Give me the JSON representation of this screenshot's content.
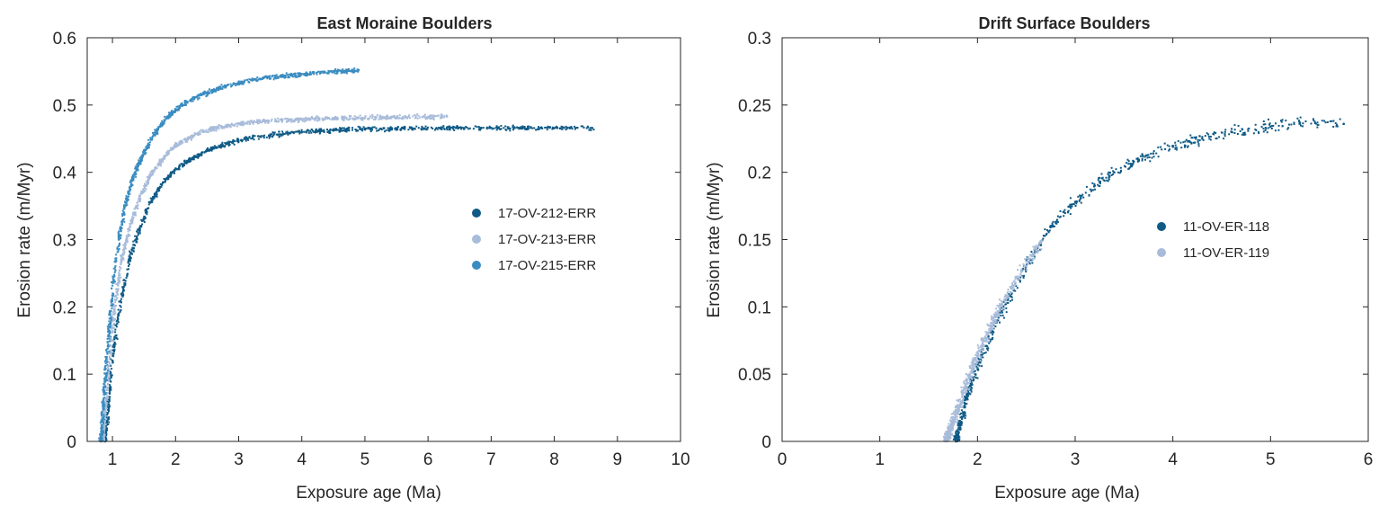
{
  "chart_data": [
    {
      "type": "scatter",
      "title": "East Moraine Boulders",
      "xlabel": "Exposure age (Ma)",
      "ylabel": "Erosion rate (m/Myr)",
      "xlim": [
        0.6,
        10
      ],
      "ylim": [
        0,
        0.6
      ],
      "xticks": [
        1,
        2,
        3,
        4,
        5,
        6,
        7,
        8,
        9,
        10
      ],
      "xtick_labels": [
        "1",
        "2",
        "3",
        "4",
        "5",
        "6",
        "7",
        "8",
        "9",
        "10"
      ],
      "yticks": [
        0,
        0.1,
        0.2,
        0.3,
        0.4,
        0.5,
        0.6
      ],
      "ytick_labels": [
        "0",
        "0.1",
        "0.2",
        "0.3",
        "0.4",
        "0.5",
        "0.6"
      ],
      "grid": false,
      "legend_position": "right",
      "series": [
        {
          "name": "17-OV-212-ERR",
          "color": "#0f5a86",
          "x": [
            0.88,
            0.95,
            1.0,
            1.08,
            1.18,
            1.3,
            1.45,
            1.6,
            1.8,
            2.0,
            2.25,
            2.5,
            2.8,
            3.1,
            3.5,
            4.0,
            4.5,
            5.0,
            5.5,
            6.2,
            7.0,
            7.8,
            8.6
          ],
          "y": [
            0.0,
            0.06,
            0.12,
            0.18,
            0.23,
            0.28,
            0.32,
            0.355,
            0.385,
            0.405,
            0.42,
            0.432,
            0.442,
            0.45,
            0.455,
            0.46,
            0.462,
            0.464,
            0.465,
            0.466,
            0.466,
            0.466,
            0.466
          ]
        },
        {
          "name": "17-OV-213-ERR",
          "color": "#a8bcda",
          "x": [
            0.85,
            0.92,
            0.98,
            1.05,
            1.15,
            1.28,
            1.42,
            1.6,
            1.8,
            2.0,
            2.3,
            2.6,
            3.0,
            3.4,
            3.9,
            4.4,
            5.0,
            5.6,
            6.3
          ],
          "y": [
            0.0,
            0.08,
            0.15,
            0.21,
            0.27,
            0.32,
            0.36,
            0.395,
            0.42,
            0.44,
            0.455,
            0.465,
            0.472,
            0.476,
            0.478,
            0.48,
            0.481,
            0.482,
            0.483
          ]
        },
        {
          "name": "17-OV-215-ERR",
          "color": "#3a8cc0",
          "x": [
            0.82,
            0.88,
            0.95,
            1.02,
            1.1,
            1.2,
            1.32,
            1.48,
            1.65,
            1.85,
            2.1,
            2.4,
            2.8,
            3.2,
            3.7,
            4.3,
            4.9
          ],
          "y": [
            0.0,
            0.09,
            0.17,
            0.24,
            0.3,
            0.35,
            0.39,
            0.425,
            0.455,
            0.48,
            0.5,
            0.515,
            0.528,
            0.537,
            0.543,
            0.548,
            0.552
          ]
        }
      ]
    },
    {
      "type": "scatter",
      "title": "Drift Surface Boulders",
      "xlabel": "Exposure age (Ma)",
      "ylabel": "Erosion rate (m/Myr)",
      "xlim": [
        0,
        6
      ],
      "ylim": [
        0,
        0.3
      ],
      "xticks": [
        0,
        1,
        2,
        3,
        4,
        5,
        6
      ],
      "xtick_labels": [
        "0",
        "1",
        "2",
        "3",
        "4",
        "5",
        "6"
      ],
      "yticks": [
        0,
        0.05,
        0.1,
        0.15,
        0.2,
        0.25,
        0.3
      ],
      "ytick_labels": [
        "0",
        "0.05",
        "0.1",
        "0.15",
        "0.2",
        "0.25",
        "0.3"
      ],
      "grid": false,
      "legend_position": "right",
      "series": [
        {
          "name": "11-OV-ER-118",
          "color": "#0f5a86",
          "x": [
            1.78,
            1.9,
            2.05,
            2.2,
            2.35,
            2.5,
            2.65,
            2.8,
            3.0,
            3.2,
            3.4,
            3.6,
            3.8,
            4.0,
            4.3,
            4.6,
            5.0,
            5.3,
            5.75
          ],
          "y": [
            0.0,
            0.035,
            0.065,
            0.09,
            0.11,
            0.13,
            0.148,
            0.163,
            0.178,
            0.19,
            0.2,
            0.208,
            0.214,
            0.219,
            0.225,
            0.23,
            0.234,
            0.237,
            0.236
          ]
        },
        {
          "name": "11-OV-ER-119",
          "color": "#a8bcda",
          "x": [
            1.68,
            1.75,
            1.85,
            1.95,
            2.05,
            2.15,
            2.25,
            2.35,
            2.45,
            2.55,
            2.65
          ],
          "y": [
            0.0,
            0.015,
            0.035,
            0.055,
            0.072,
            0.088,
            0.102,
            0.115,
            0.127,
            0.138,
            0.148
          ]
        }
      ]
    }
  ]
}
